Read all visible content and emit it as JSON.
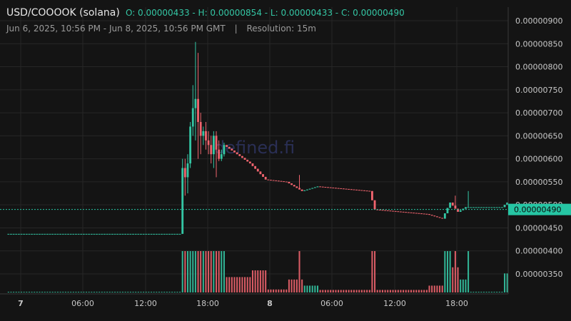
{
  "header": {
    "title": "USD/COOOOK (solana)",
    "ohlc": "O: 0.00000433 - H: 0.00000854 - L: 0.00000433 - C: 0.00000490",
    "range": "Jun 6, 2025, 10:56 PM - Jun 8, 2025, 10:56 PM GMT",
    "separator": "|",
    "resolution": "Resolution: 15m"
  },
  "watermark": "defined.fi",
  "colors": {
    "up": "#34c6a4",
    "down": "#f0646e",
    "grid": "#262626",
    "background": "#141414",
    "last_price_bg": "#26c6a4"
  },
  "chart_data": {
    "type": "candlestick",
    "title": "USD/COOOOK (solana)",
    "ylim": [
      3.05e-06,
      9.15e-06
    ],
    "y_ticks": [
      "0.00000350",
      "0.00000400",
      "0.00000450",
      "0.00000500",
      "0.00000550",
      "0.00000600",
      "0.00000650",
      "0.00000700",
      "0.00000750",
      "0.00000800",
      "0.00000850",
      "0.00000900"
    ],
    "x_ticks": [
      "7",
      "06:00",
      "12:00",
      "18:00",
      "8",
      "06:00",
      "12:00",
      "18:00"
    ],
    "last_price": "0.00000490",
    "ohlc_summary": {
      "open": 4.33e-06,
      "high": 8.54e-06,
      "low": 4.33e-06,
      "close": 4.9e-06
    }
  }
}
